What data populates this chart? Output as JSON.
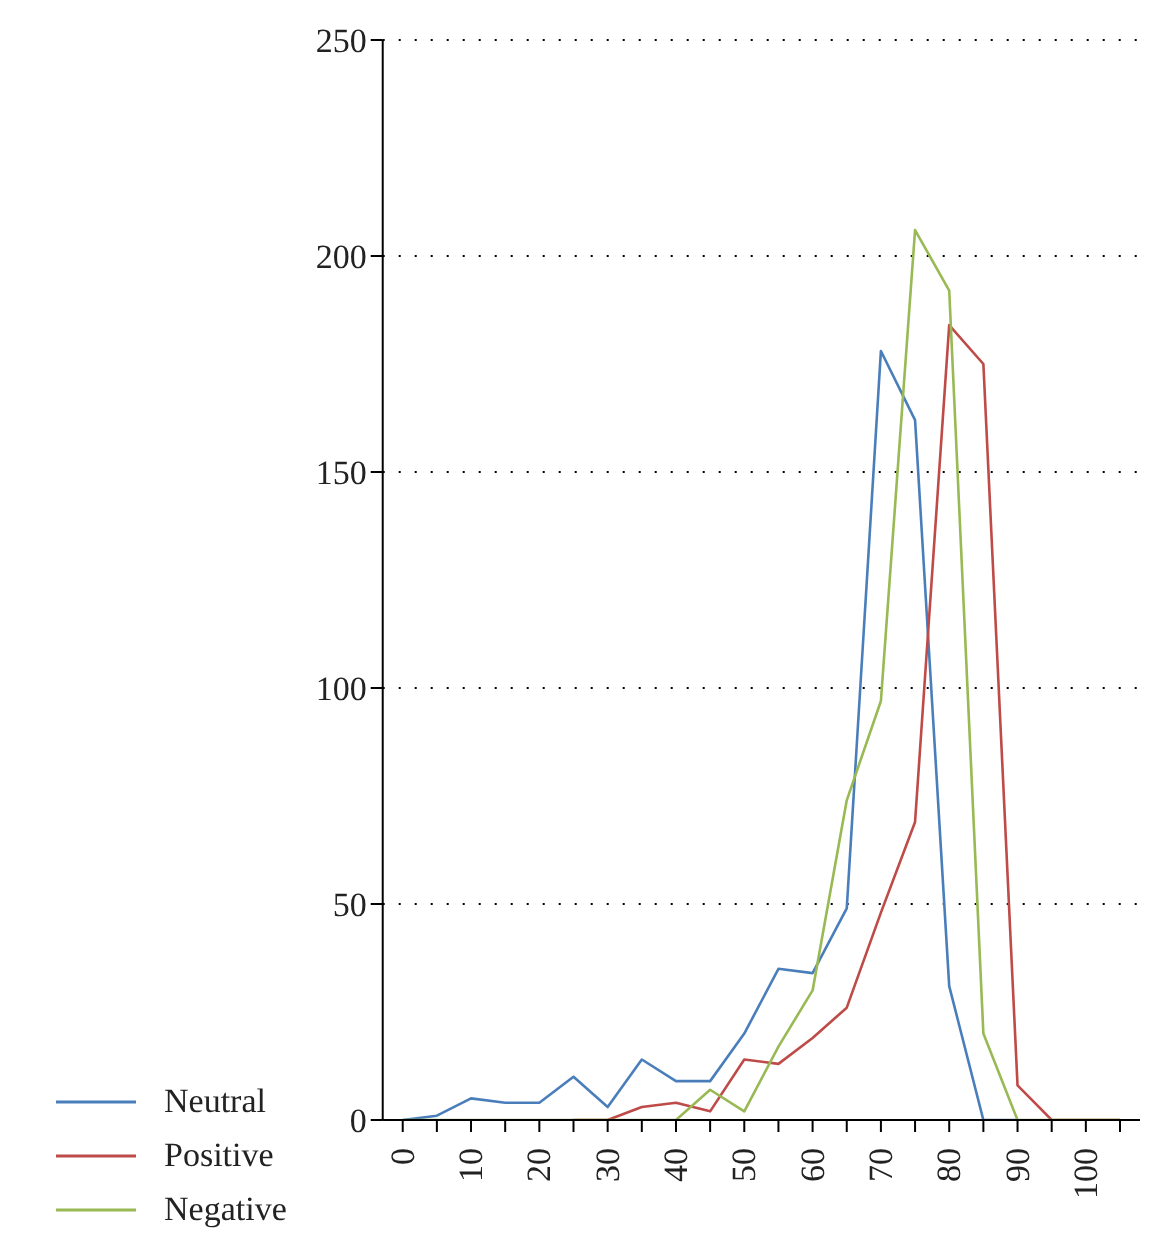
{
  "chart_data": {
    "type": "line",
    "categories": [
      "0",
      null,
      "10",
      null,
      "20",
      null,
      "30",
      null,
      "40",
      null,
      "50",
      null,
      "60",
      null,
      "70",
      null,
      "80",
      null,
      "90",
      null,
      "100",
      null
    ],
    "series": [
      {
        "name": "Neutral",
        "color": "#4a7ebb",
        "values": [
          0,
          1,
          5,
          4,
          4,
          10,
          3,
          14,
          9,
          9,
          20,
          35,
          34,
          49,
          178,
          162,
          31,
          0,
          0,
          null,
          null,
          null
        ]
      },
      {
        "name": "Positive",
        "color": "#be4b48",
        "values": [
          null,
          null,
          null,
          null,
          null,
          0,
          0,
          3,
          4,
          2,
          14,
          13,
          19,
          26,
          48,
          69,
          184,
          175,
          8,
          0,
          0,
          0
        ]
      },
      {
        "name": "Negative",
        "color": "#98b954",
        "values": [
          0,
          0,
          0,
          0,
          0,
          0,
          0,
          0,
          0,
          7,
          2,
          17,
          30,
          74,
          97,
          206,
          192,
          20,
          0,
          0,
          0,
          0
        ]
      }
    ],
    "ylim": [
      0,
      250
    ],
    "yticks": [
      0,
      50,
      100,
      150,
      200,
      250
    ],
    "grid": "y",
    "legend": "bottom",
    "marker": "none",
    "line_style": "solid"
  }
}
